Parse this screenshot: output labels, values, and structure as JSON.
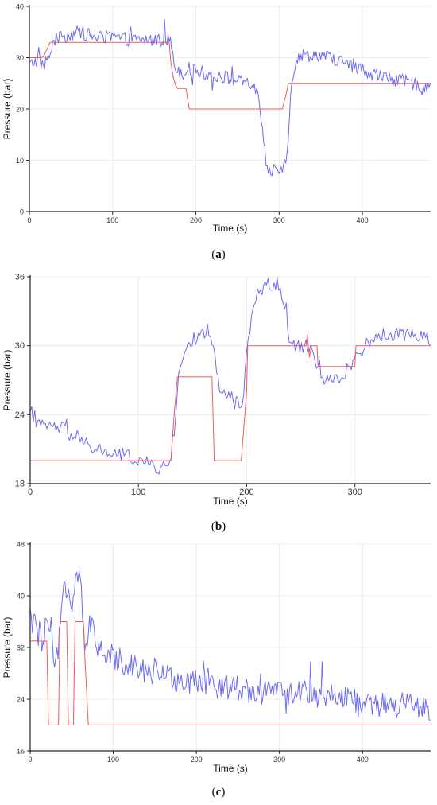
{
  "colors": {
    "measured": "#6b6bf0",
    "setpoint": "#ef5a5a",
    "axis": "#222222",
    "grid": "#ececec"
  },
  "chart_data": [
    {
      "type": "line",
      "label": "a",
      "xlabel": "Time (s)",
      "ylabel": "Pressure (bar)",
      "xlim": [
        0,
        482
      ],
      "ylim": [
        0,
        40
      ],
      "xticks": [
        0,
        100,
        200,
        300,
        400
      ],
      "yticks": [
        0,
        10,
        20,
        30,
        40
      ],
      "grid": true,
      "series": [
        {
          "role": "measured",
          "color": "#6b6bf0",
          "noise": 1.3,
          "x": [
            0,
            8,
            14,
            18,
            22,
            26,
            30,
            40,
            60,
            80,
            100,
            120,
            140,
            160,
            165,
            170,
            173,
            176,
            180,
            185,
            190,
            195,
            200,
            210,
            220,
            230,
            240,
            250,
            260,
            270,
            275,
            278,
            282,
            286,
            290,
            295,
            300,
            305,
            308,
            311,
            314,
            318,
            322,
            326,
            332,
            340,
            350,
            360,
            370,
            380,
            390,
            400,
            410,
            420,
            430,
            440,
            450,
            460,
            470,
            482
          ],
          "y": [
            28.5,
            29.5,
            29,
            28.5,
            30,
            31,
            33.5,
            34,
            35,
            34,
            34,
            33.5,
            33.5,
            33.5,
            33.5,
            33.5,
            29,
            28,
            27.5,
            27,
            28,
            27.5,
            27.5,
            27,
            26.5,
            26.5,
            26,
            25.5,
            25,
            24.5,
            22,
            18,
            12,
            8,
            7.5,
            8.5,
            8.5,
            9,
            9.5,
            15,
            24,
            28,
            29.5,
            30.5,
            30.5,
            30.5,
            30.5,
            30,
            29.5,
            29,
            28,
            27.5,
            27,
            26.5,
            26,
            25.5,
            25.5,
            25,
            24.5,
            24.5
          ]
        },
        {
          "role": "setpoint",
          "color": "#ef5a5a",
          "noise": 0,
          "x": [
            0,
            15,
            18,
            22,
            25,
            28,
            120,
            168,
            170,
            173,
            176,
            178,
            180,
            186,
            188,
            192,
            300,
            304,
            306,
            308,
            311,
            314,
            482
          ],
          "y": [
            30,
            30,
            30.5,
            32,
            33,
            33,
            33,
            33,
            29,
            26,
            24.5,
            24,
            24,
            24,
            24,
            20,
            20,
            20,
            21.5,
            22.5,
            25,
            25,
            25
          ]
        }
      ]
    },
    {
      "type": "line",
      "label": "b",
      "xlabel": "Time (s)",
      "ylabel": "Pressure (bar)",
      "xlim": [
        0,
        370
      ],
      "ylim": [
        18,
        36
      ],
      "xticks": [
        0,
        100,
        200,
        300
      ],
      "yticks": [
        18,
        24,
        30,
        36
      ],
      "grid": true,
      "series": [
        {
          "role": "measured",
          "color": "#6b6bf0",
          "noise": 0.6,
          "x": [
            0,
            5,
            10,
            20,
            30,
            40,
            50,
            60,
            70,
            80,
            90,
            100,
            110,
            120,
            125,
            128,
            131,
            134,
            137,
            141,
            145,
            150,
            160,
            165,
            170,
            176,
            182,
            190,
            196,
            200,
            205,
            210,
            220,
            230,
            236,
            240,
            250,
            255,
            260,
            265,
            270,
            280,
            290,
            300,
            310,
            320,
            330,
            340,
            350,
            360,
            370
          ],
          "y": [
            24.5,
            23.3,
            23,
            23,
            22.8,
            22,
            21.5,
            21,
            20.8,
            20.5,
            20.5,
            20,
            19.7,
            19.3,
            19.5,
            19.5,
            21,
            23,
            27,
            29.3,
            30,
            30.5,
            31,
            31.5,
            29.3,
            26,
            25.5,
            25,
            25,
            29.7,
            32.5,
            34.5,
            35.5,
            35,
            33,
            30.5,
            29.7,
            29.5,
            30,
            28,
            27,
            27,
            27.5,
            29,
            30,
            30.8,
            31,
            31,
            31,
            31,
            30.5
          ]
        },
        {
          "role": "setpoint",
          "color": "#ef5a5a",
          "noise": 0,
          "x": [
            0,
            130,
            133,
            136,
            168,
            170,
            195,
            200,
            201,
            255,
            256,
            258,
            260,
            265,
            266,
            300,
            301,
            370
          ],
          "y": [
            20,
            20,
            24,
            27.3,
            27.3,
            20,
            20,
            26,
            30,
            30,
            31,
            29,
            30,
            30,
            28.2,
            28.2,
            30,
            30
          ]
        }
      ]
    },
    {
      "type": "line",
      "label": "c",
      "xlabel": "Time (s)",
      "ylabel": "Pressure (bar)",
      "xlim": [
        0,
        482
      ],
      "ylim": [
        16,
        48
      ],
      "xticks": [
        0,
        100,
        200,
        300,
        400
      ],
      "yticks": [
        16,
        24,
        32,
        40,
        48
      ],
      "grid": true,
      "series": [
        {
          "role": "measured",
          "color": "#6b6bf0",
          "noise": 2.0,
          "x": [
            0,
            2,
            5,
            10,
            15,
            20,
            25,
            28,
            30,
            35,
            40,
            45,
            50,
            55,
            60,
            65,
            70,
            75,
            80,
            90,
            100,
            110,
            120,
            130,
            140,
            150,
            160,
            170,
            180,
            200,
            220,
            240,
            260,
            280,
            300,
            320,
            340,
            360,
            380,
            388,
            392,
            395,
            400,
            440,
            460,
            470,
            480,
            482
          ],
          "y": [
            37,
            36,
            35.5,
            34,
            32,
            36,
            35,
            30,
            28,
            33,
            41,
            42,
            38,
            43,
            44,
            33,
            34,
            38,
            31,
            31,
            30.5,
            30,
            29.5,
            29,
            28.5,
            28,
            27.5,
            27.5,
            27,
            26.5,
            26,
            26,
            25.5,
            25,
            25,
            25,
            24.8,
            24.5,
            24.5,
            24.5,
            23.5,
            23,
            23,
            23,
            23,
            22.5,
            22.5,
            22.5
          ]
        },
        {
          "role": "setpoint",
          "color": "#ef5a5a",
          "noise": 0,
          "x": [
            0,
            20,
            22,
            34,
            36,
            44,
            46,
            52,
            54,
            64,
            66,
            70,
            72,
            482
          ],
          "y": [
            33,
            33,
            20,
            20,
            36,
            36,
            20,
            20,
            36,
            36,
            30,
            20,
            20,
            20
          ]
        }
      ]
    }
  ],
  "captions": {
    "a": {
      "open": "(",
      "letter": "a",
      "close": ")"
    },
    "b": {
      "open": "(",
      "letter": "b",
      "close": ")"
    },
    "c": {
      "open": "(",
      "letter": "c",
      "close": ")"
    }
  }
}
